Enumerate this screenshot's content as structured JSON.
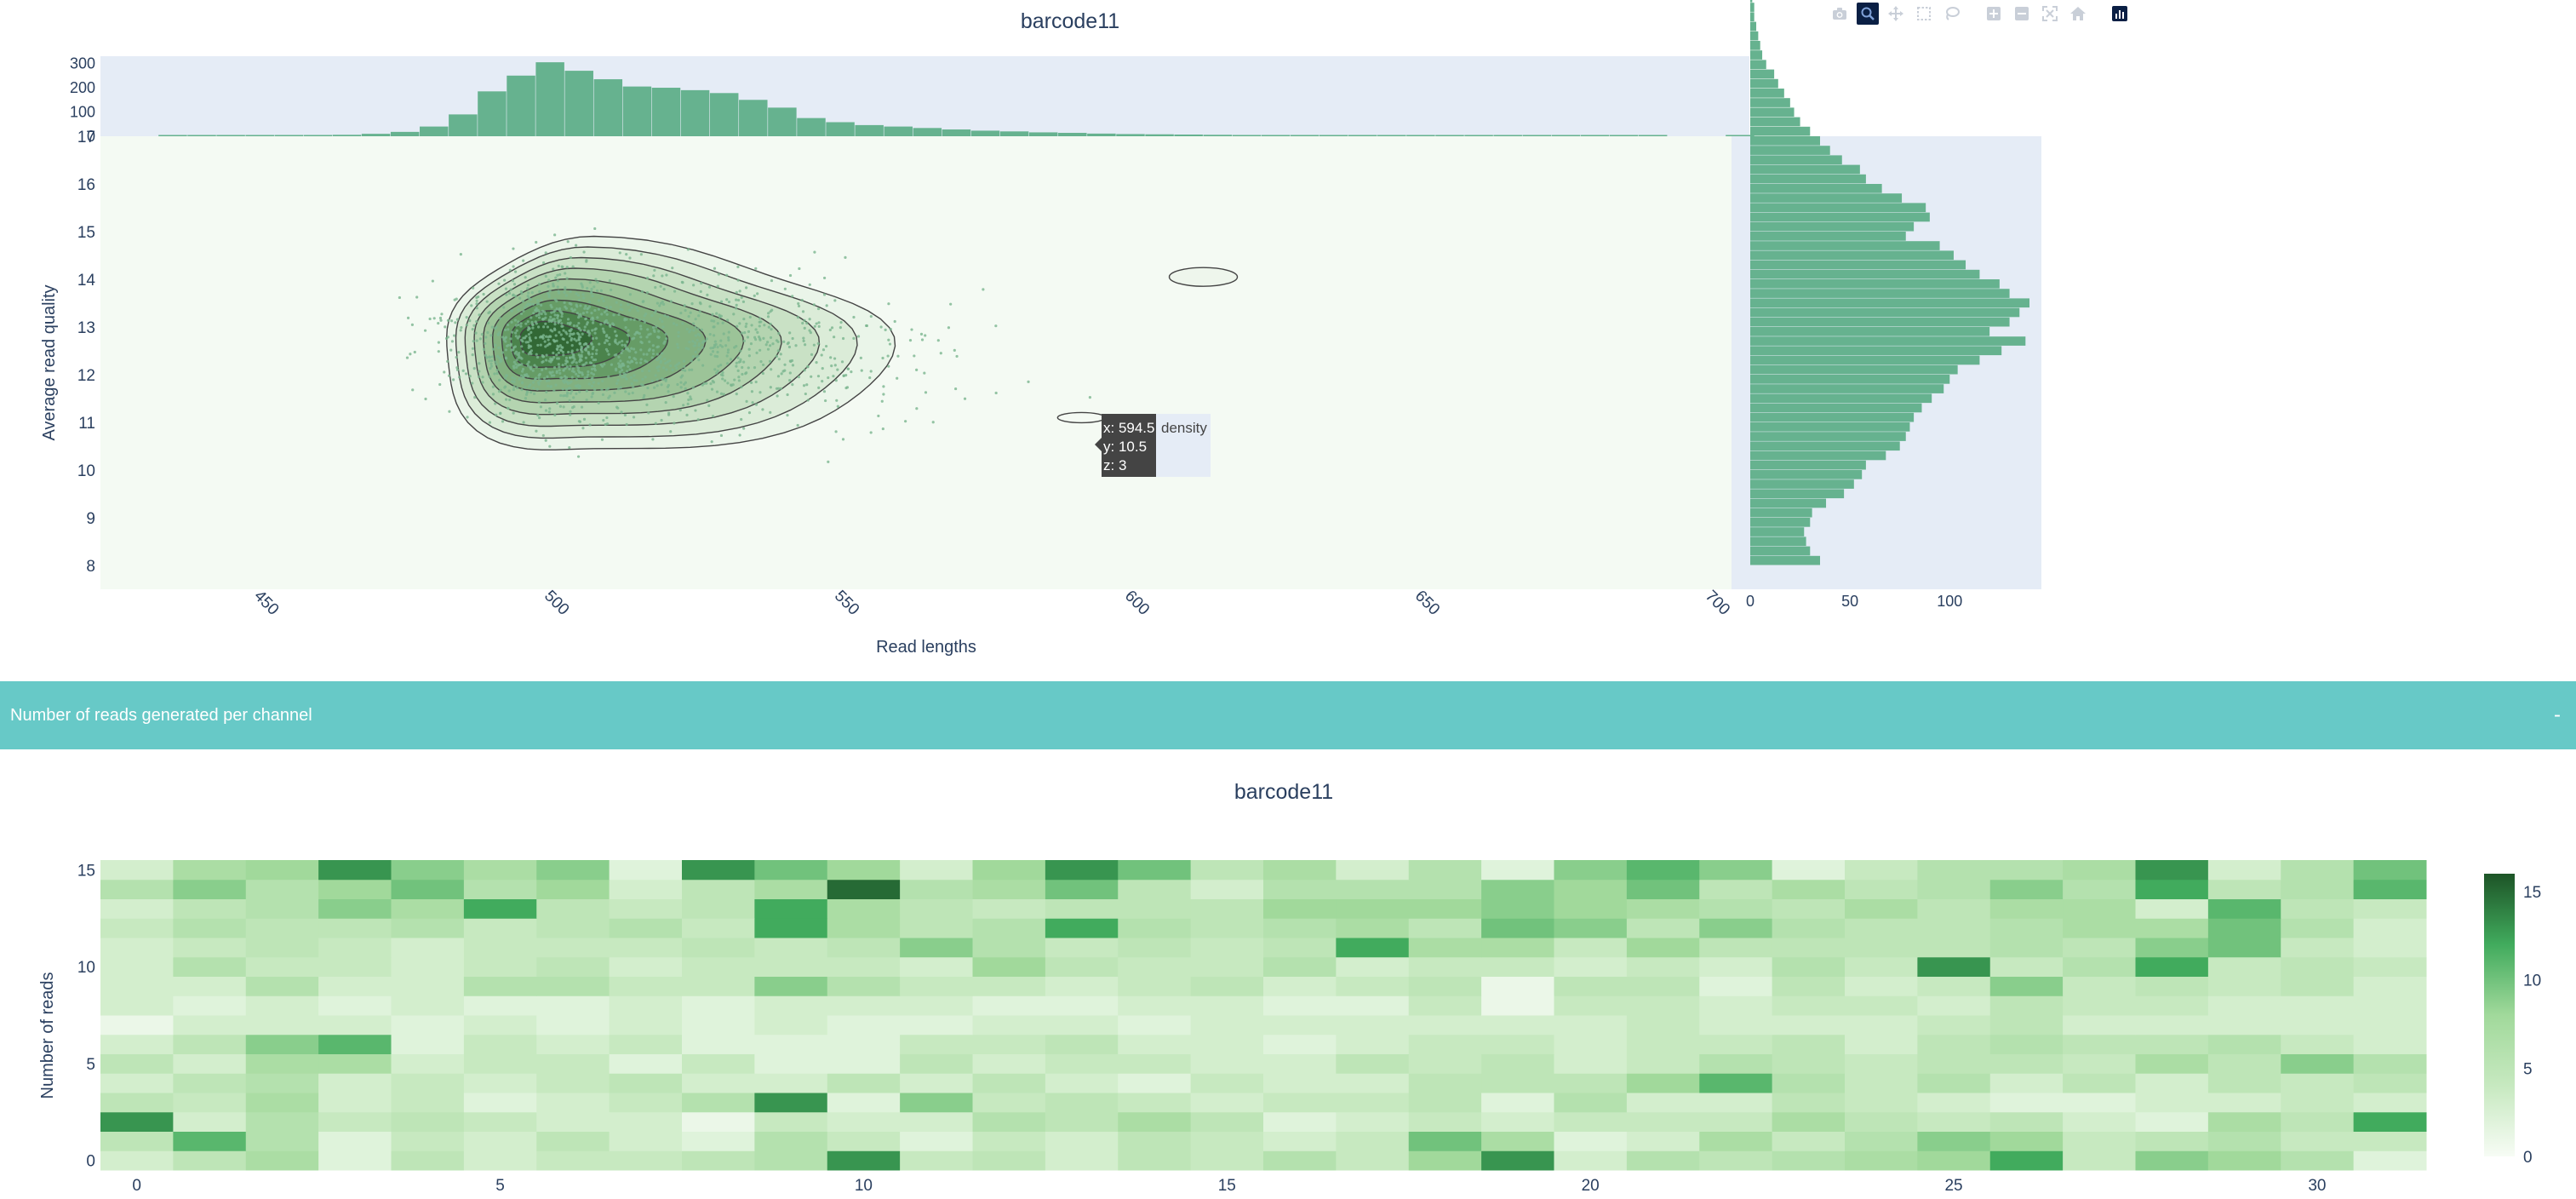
{
  "toolbar": {
    "buttons": [
      {
        "name": "camera-icon",
        "label": "Download plot as a png",
        "active": false
      },
      {
        "name": "zoom-icon",
        "label": "Zoom",
        "active": true
      },
      {
        "name": "pan-icon",
        "label": "Pan",
        "active": false
      },
      {
        "name": "box-select-icon",
        "label": "Box Select",
        "active": false
      },
      {
        "name": "lasso-select-icon",
        "label": "Lasso Select",
        "active": false
      },
      {
        "name": "zoom-in-icon",
        "label": "Zoom in",
        "active": false
      },
      {
        "name": "zoom-out-icon",
        "label": "Zoom out",
        "active": false
      },
      {
        "name": "autoscale-icon",
        "label": "Autoscale",
        "active": false
      },
      {
        "name": "reset-axes-icon",
        "label": "Reset axes",
        "active": false
      },
      {
        "name": "plotly-logo-icon",
        "label": "Produced with Plotly",
        "active": false
      }
    ]
  },
  "section": {
    "title": "Number of reads generated per channel",
    "collapse_label": "-"
  },
  "colors": {
    "hist_fill": "#66b28f",
    "density_bg": "#f4faf3",
    "margin_bg": "#e5ecf6",
    "heat_low": "#f7fcf5",
    "heat_high": "#1d5427",
    "section_bar": "#67c9c7"
  },
  "chart_data": [
    {
      "type": "scatter",
      "subtype": "density-contour-with-marginal-histograms",
      "title": "barcode11",
      "xlabel": "Read lengths",
      "ylabel": "Average read quality",
      "xlim": [
        422,
        703
      ],
      "ylim": [
        7.5,
        17
      ],
      "x_ticks": [
        450,
        500,
        550,
        600,
        650,
        700
      ],
      "y_ticks": [
        8,
        9,
        10,
        11,
        12,
        13,
        14,
        15,
        16,
        17
      ],
      "grid": false,
      "density_center": [
        507,
        12.6
      ],
      "contour_levels": 9,
      "hover": {
        "x_label": "x: 594.5",
        "y_label": "y: 10.5",
        "z_label": "z: 3",
        "trace": "density"
      },
      "top_histogram": {
        "ylim": [
          0,
          330
        ],
        "y_ticks": [
          0,
          100,
          200,
          300
        ],
        "bin_start": 432,
        "bin_width": 5,
        "counts": [
          1,
          2,
          1,
          3,
          2,
          4,
          6,
          10,
          18,
          40,
          90,
          185,
          250,
          305,
          270,
          235,
          205,
          200,
          190,
          178,
          150,
          118,
          75,
          58,
          46,
          40,
          34,
          28,
          23,
          20,
          16,
          14,
          11,
          9,
          8,
          7,
          6,
          5,
          4,
          4,
          3,
          3,
          2,
          2,
          2,
          1,
          1,
          1,
          1,
          1,
          1,
          1,
          0,
          0,
          1,
          0
        ]
      },
      "right_histogram": {
        "xlim": [
          0,
          140
        ],
        "x_ticks": [
          0,
          50,
          100
        ],
        "bin_start": 8,
        "bin_width": 0.2,
        "counts": [
          35,
          30,
          28,
          27,
          30,
          31,
          38,
          47,
          52,
          56,
          58,
          68,
          75,
          78,
          80,
          82,
          86,
          91,
          97,
          100,
          104,
          115,
          126,
          138,
          120,
          130,
          135,
          140,
          130,
          125,
          115,
          108,
          102,
          95,
          78,
          82,
          90,
          88,
          76,
          66,
          58,
          55,
          46,
          40,
          35,
          30,
          25,
          22,
          20,
          17,
          14,
          12,
          8,
          6,
          5,
          4,
          3,
          2,
          2,
          1,
          1,
          1,
          1,
          1,
          0,
          0,
          0,
          0,
          0,
          0,
          0,
          0,
          0,
          0,
          0,
          0,
          0,
          0,
          0,
          0,
          0,
          0,
          0,
          0,
          0,
          0,
          0,
          0,
          0,
          0,
          0,
          0,
          0,
          0,
          0,
          1,
          0,
          2
        ]
      }
    },
    {
      "type": "heatmap",
      "title": "barcode11",
      "xlabel": "",
      "ylabel": "Number of reads",
      "xlim": [
        -0.5,
        31.5
      ],
      "ylim": [
        -0.5,
        15.5
      ],
      "x_ticks": [
        0,
        5,
        10,
        15,
        20,
        25,
        30
      ],
      "y_ticks": [
        0,
        5,
        10,
        15
      ],
      "colorbar": {
        "range": [
          0,
          16
        ],
        "ticks": [
          0,
          5,
          10,
          15
        ]
      },
      "z": [
        [
          3,
          5,
          7,
          2,
          5,
          3,
          4,
          4,
          5,
          6,
          13,
          4,
          5,
          3,
          5,
          4,
          6,
          4,
          8,
          13,
          3,
          6,
          5,
          6,
          7,
          8,
          12,
          4,
          9,
          8,
          6,
          2
        ],
        [
          5,
          11,
          6,
          2,
          4,
          3,
          5,
          3,
          2,
          6,
          4,
          2,
          4,
          3,
          5,
          4,
          3,
          4,
          10,
          7,
          2,
          3,
          7,
          4,
          6,
          9,
          8,
          4,
          5,
          6,
          4,
          4
        ],
        [
          13,
          3,
          6,
          4,
          5,
          4,
          3,
          3,
          1,
          4,
          3,
          3,
          6,
          5,
          7,
          5,
          2,
          3,
          4,
          3,
          4,
          4,
          4,
          7,
          5,
          4,
          5,
          3,
          2,
          7,
          5,
          12
        ],
        [
          5,
          4,
          7,
          3,
          4,
          2,
          3,
          4,
          6,
          13,
          2,
          9,
          4,
          5,
          4,
          3,
          4,
          4,
          5,
          2,
          6,
          3,
          3,
          5,
          4,
          3,
          2,
          2,
          3,
          3,
          4,
          3
        ],
        [
          3,
          5,
          6,
          3,
          4,
          3,
          4,
          5,
          3,
          3,
          5,
          3,
          5,
          3,
          2,
          4,
          3,
          3,
          5,
          5,
          5,
          8,
          11,
          6,
          4,
          6,
          3,
          5,
          3,
          5,
          4,
          5
        ],
        [
          5,
          3,
          7,
          7,
          3,
          4,
          4,
          2,
          4,
          2,
          2,
          5,
          3,
          4,
          4,
          3,
          3,
          5,
          4,
          5,
          3,
          4,
          6,
          5,
          4,
          5,
          5,
          4,
          7,
          5,
          9,
          6
        ],
        [
          3,
          5,
          9,
          11,
          2,
          4,
          3,
          4,
          2,
          2,
          2,
          4,
          4,
          5,
          3,
          3,
          2,
          3,
          4,
          4,
          3,
          4,
          4,
          5,
          3,
          5,
          6,
          5,
          5,
          6,
          4,
          3
        ],
        [
          1,
          3,
          3,
          3,
          2,
          3,
          2,
          3,
          2,
          3,
          2,
          2,
          3,
          3,
          2,
          3,
          3,
          3,
          3,
          3,
          3,
          4,
          3,
          3,
          3,
          4,
          5,
          3,
          3,
          3,
          3,
          3
        ],
        [
          3,
          2,
          3,
          2,
          3,
          2,
          2,
          3,
          2,
          3,
          3,
          3,
          2,
          2,
          3,
          3,
          2,
          2,
          4,
          1,
          4,
          4,
          3,
          4,
          4,
          3,
          5,
          4,
          4,
          3,
          3,
          3
        ],
        [
          3,
          3,
          6,
          3,
          3,
          6,
          6,
          4,
          4,
          9,
          6,
          4,
          4,
          3,
          4,
          5,
          3,
          4,
          5,
          1,
          5,
          5,
          2,
          5,
          3,
          4,
          9,
          4,
          5,
          4,
          5,
          3
        ],
        [
          3,
          6,
          4,
          4,
          3,
          4,
          5,
          3,
          4,
          4,
          4,
          3,
          8,
          5,
          4,
          4,
          6,
          3,
          4,
          4,
          3,
          4,
          3,
          6,
          4,
          13,
          4,
          6,
          12,
          4,
          5,
          4
        ],
        [
          3,
          4,
          5,
          4,
          3,
          4,
          4,
          4,
          5,
          4,
          5,
          9,
          6,
          4,
          5,
          4,
          5,
          12,
          7,
          7,
          4,
          8,
          5,
          5,
          5,
          5,
          6,
          5,
          9,
          10,
          4,
          3
        ],
        [
          4,
          6,
          5,
          5,
          6,
          4,
          5,
          6,
          4,
          12,
          7,
          5,
          6,
          12,
          6,
          5,
          6,
          7,
          5,
          10,
          9,
          5,
          9,
          6,
          5,
          5,
          6,
          7,
          7,
          10,
          6,
          3
        ],
        [
          3,
          5,
          6,
          9,
          7,
          12,
          5,
          4,
          5,
          12,
          7,
          5,
          4,
          5,
          5,
          5,
          8,
          8,
          8,
          9,
          8,
          7,
          6,
          5,
          7,
          5,
          7,
          7,
          3,
          11,
          5,
          4
        ],
        [
          6,
          9,
          6,
          8,
          10,
          6,
          8,
          3,
          5,
          7,
          15,
          6,
          7,
          10,
          5,
          3,
          6,
          6,
          6,
          9,
          8,
          10,
          5,
          7,
          5,
          6,
          9,
          6,
          12,
          5,
          6,
          11
        ],
        [
          3,
          7,
          8,
          13,
          9,
          7,
          9,
          2,
          13,
          10,
          8,
          3,
          8,
          13,
          10,
          5,
          7,
          3,
          6,
          2,
          9,
          11,
          9,
          2,
          4,
          6,
          6,
          7,
          13,
          3,
          6,
          10
        ]
      ]
    }
  ]
}
